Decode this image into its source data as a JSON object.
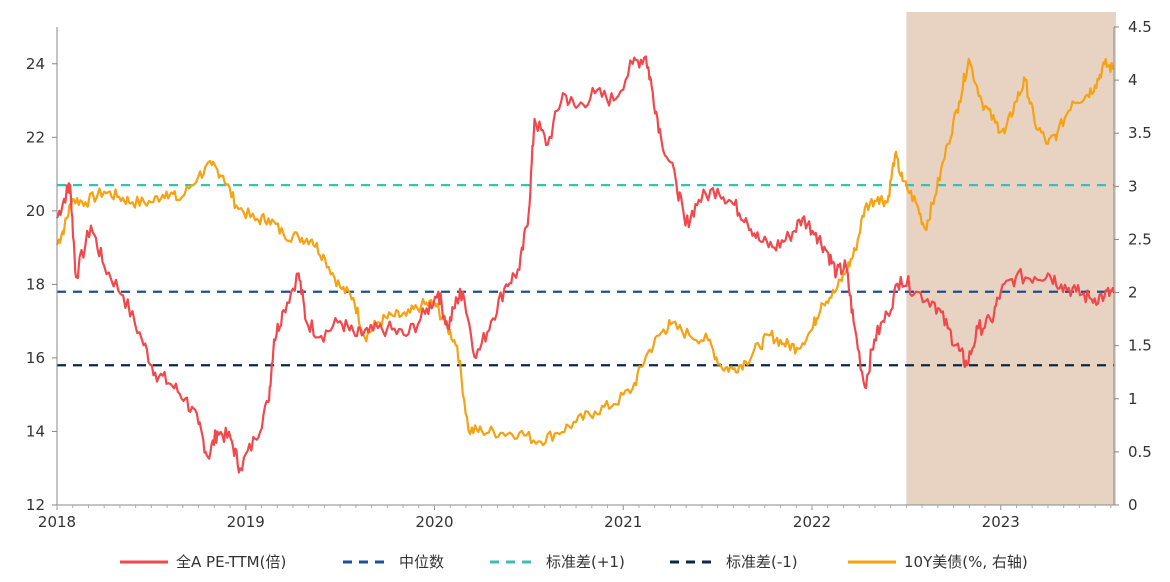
{
  "chart_data": {
    "type": "line",
    "title": "",
    "colors": {
      "pe": "#f0494d",
      "median": "#1f4e99",
      "plus1": "#3cbfae",
      "minus1": "#0b2a4a",
      "bond": "#f5a214",
      "shade": "#e8d3c2"
    },
    "x_ticks": [
      "2018",
      "2019",
      "2020",
      "2021",
      "2022",
      "2023"
    ],
    "x_range": [
      2018.0,
      2023.6
    ],
    "y_left": {
      "range": [
        12,
        25
      ],
      "ticks": [
        "12",
        "14",
        "16",
        "18",
        "20",
        "22",
        "24"
      ]
    },
    "y_right": {
      "range": [
        0,
        4.5
      ],
      "ticks": [
        "0",
        "0.5",
        "1",
        "1.5",
        "2",
        "2.5",
        "3",
        "3.5",
        "4",
        "4.5"
      ]
    },
    "shaded_region": [
      2022.5,
      2023.6
    ],
    "series": [
      {
        "name": "全A PE-TTM(倍)",
        "axis": "left",
        "points": [
          [
            2018.0,
            19.8
          ],
          [
            2018.05,
            20.5
          ],
          [
            2018.07,
            20.7
          ],
          [
            2018.1,
            18.2
          ],
          [
            2018.18,
            19.6
          ],
          [
            2018.25,
            18.5
          ],
          [
            2018.35,
            17.7
          ],
          [
            2018.45,
            16.5
          ],
          [
            2018.52,
            15.6
          ],
          [
            2018.6,
            15.3
          ],
          [
            2018.68,
            14.9
          ],
          [
            2018.75,
            14.2
          ],
          [
            2018.8,
            13.3
          ],
          [
            2018.85,
            14.0
          ],
          [
            2018.92,
            13.8
          ],
          [
            2018.97,
            13.0
          ],
          [
            2019.05,
            13.8
          ],
          [
            2019.12,
            14.8
          ],
          [
            2019.15,
            16.5
          ],
          [
            2019.2,
            17.3
          ],
          [
            2019.28,
            18.3
          ],
          [
            2019.32,
            17.0
          ],
          [
            2019.4,
            16.6
          ],
          [
            2019.5,
            17.0
          ],
          [
            2019.58,
            16.6
          ],
          [
            2019.65,
            16.7
          ],
          [
            2019.75,
            16.8
          ],
          [
            2019.85,
            16.6
          ],
          [
            2019.95,
            17.2
          ],
          [
            2020.02,
            17.8
          ],
          [
            2020.07,
            16.8
          ],
          [
            2020.12,
            17.6
          ],
          [
            2020.15,
            17.8
          ],
          [
            2020.22,
            16.0
          ],
          [
            2020.3,
            17.0
          ],
          [
            2020.38,
            18.0
          ],
          [
            2020.45,
            18.4
          ],
          [
            2020.5,
            20.0
          ],
          [
            2020.53,
            22.5
          ],
          [
            2020.6,
            21.8
          ],
          [
            2020.68,
            23.2
          ],
          [
            2020.75,
            22.8
          ],
          [
            2020.85,
            23.2
          ],
          [
            2020.95,
            23.0
          ],
          [
            2021.05,
            24.0
          ],
          [
            2021.12,
            24.2
          ],
          [
            2021.15,
            23.4
          ],
          [
            2021.2,
            22.0
          ],
          [
            2021.28,
            20.8
          ],
          [
            2021.33,
            19.6
          ],
          [
            2021.4,
            20.3
          ],
          [
            2021.5,
            20.6
          ],
          [
            2021.58,
            20.2
          ],
          [
            2021.65,
            19.8
          ],
          [
            2021.72,
            19.2
          ],
          [
            2021.8,
            19.0
          ],
          [
            2021.88,
            19.3
          ],
          [
            2021.95,
            19.8
          ],
          [
            2022.02,
            19.4
          ],
          [
            2022.08,
            18.9
          ],
          [
            2022.13,
            18.3
          ],
          [
            2022.18,
            18.5
          ],
          [
            2022.22,
            17.0
          ],
          [
            2022.28,
            15.2
          ],
          [
            2022.33,
            16.5
          ],
          [
            2022.4,
            17.2
          ],
          [
            2022.47,
            18.2
          ],
          [
            2022.55,
            17.8
          ],
          [
            2022.65,
            17.5
          ],
          [
            2022.72,
            16.8
          ],
          [
            2022.78,
            16.2
          ],
          [
            2022.82,
            15.8
          ],
          [
            2022.88,
            16.8
          ],
          [
            2022.95,
            17.0
          ],
          [
            2023.0,
            17.8
          ],
          [
            2023.08,
            18.2
          ],
          [
            2023.18,
            18.2
          ],
          [
            2023.25,
            18.3
          ],
          [
            2023.32,
            18.0
          ],
          [
            2023.4,
            17.8
          ],
          [
            2023.48,
            17.6
          ],
          [
            2023.55,
            17.7
          ],
          [
            2023.6,
            17.8
          ]
        ]
      },
      {
        "name": "中位数",
        "axis": "left",
        "constant": 17.8
      },
      {
        "name": "标准差(+1)",
        "axis": "left",
        "constant": 20.7
      },
      {
        "name": "标准差(-1)",
        "axis": "left",
        "constant": 15.8
      },
      {
        "name": "10Y美债(%, 右轴)",
        "axis": "right",
        "points": [
          [
            2018.0,
            2.45
          ],
          [
            2018.04,
            2.62
          ],
          [
            2018.08,
            2.88
          ],
          [
            2018.15,
            2.85
          ],
          [
            2018.25,
            2.95
          ],
          [
            2018.33,
            2.9
          ],
          [
            2018.4,
            2.85
          ],
          [
            2018.5,
            2.85
          ],
          [
            2018.58,
            2.95
          ],
          [
            2018.65,
            2.87
          ],
          [
            2018.75,
            3.1
          ],
          [
            2018.82,
            3.2
          ],
          [
            2018.88,
            3.1
          ],
          [
            2018.95,
            2.82
          ],
          [
            2019.05,
            2.68
          ],
          [
            2019.12,
            2.7
          ],
          [
            2019.2,
            2.55
          ],
          [
            2019.28,
            2.52
          ],
          [
            2019.35,
            2.5
          ],
          [
            2019.42,
            2.32
          ],
          [
            2019.5,
            2.05
          ],
          [
            2019.57,
            1.95
          ],
          [
            2019.63,
            1.58
          ],
          [
            2019.7,
            1.72
          ],
          [
            2019.78,
            1.78
          ],
          [
            2019.85,
            1.78
          ],
          [
            2019.93,
            1.88
          ],
          [
            2020.0,
            1.9
          ],
          [
            2020.06,
            1.7
          ],
          [
            2020.12,
            1.5
          ],
          [
            2020.18,
            0.7
          ],
          [
            2020.25,
            0.7
          ],
          [
            2020.35,
            0.68
          ],
          [
            2020.45,
            0.68
          ],
          [
            2020.55,
            0.6
          ],
          [
            2020.65,
            0.68
          ],
          [
            2020.75,
            0.78
          ],
          [
            2020.85,
            0.88
          ],
          [
            2020.95,
            0.95
          ],
          [
            2021.05,
            1.1
          ],
          [
            2021.12,
            1.4
          ],
          [
            2021.2,
            1.62
          ],
          [
            2021.25,
            1.7
          ],
          [
            2021.35,
            1.6
          ],
          [
            2021.45,
            1.55
          ],
          [
            2021.52,
            1.3
          ],
          [
            2021.58,
            1.28
          ],
          [
            2021.65,
            1.35
          ],
          [
            2021.72,
            1.5
          ],
          [
            2021.78,
            1.6
          ],
          [
            2021.85,
            1.52
          ],
          [
            2021.92,
            1.48
          ],
          [
            2022.0,
            1.65
          ],
          [
            2022.05,
            1.9
          ],
          [
            2022.12,
            2.0
          ],
          [
            2022.18,
            2.2
          ],
          [
            2022.23,
            2.4
          ],
          [
            2022.28,
            2.8
          ],
          [
            2022.35,
            2.9
          ],
          [
            2022.4,
            2.85
          ],
          [
            2022.44,
            3.3
          ],
          [
            2022.48,
            3.05
          ],
          [
            2022.55,
            2.85
          ],
          [
            2022.6,
            2.6
          ],
          [
            2022.65,
            2.9
          ],
          [
            2022.72,
            3.4
          ],
          [
            2022.78,
            3.8
          ],
          [
            2022.83,
            4.2
          ],
          [
            2022.9,
            3.8
          ],
          [
            2022.97,
            3.6
          ],
          [
            2023.02,
            3.5
          ],
          [
            2023.08,
            3.8
          ],
          [
            2023.13,
            4.0
          ],
          [
            2023.18,
            3.6
          ],
          [
            2023.25,
            3.4
          ],
          [
            2023.3,
            3.5
          ],
          [
            2023.38,
            3.8
          ],
          [
            2023.45,
            3.85
          ],
          [
            2023.5,
            3.95
          ],
          [
            2023.55,
            4.15
          ],
          [
            2023.6,
            4.1
          ]
        ]
      }
    ]
  }
}
